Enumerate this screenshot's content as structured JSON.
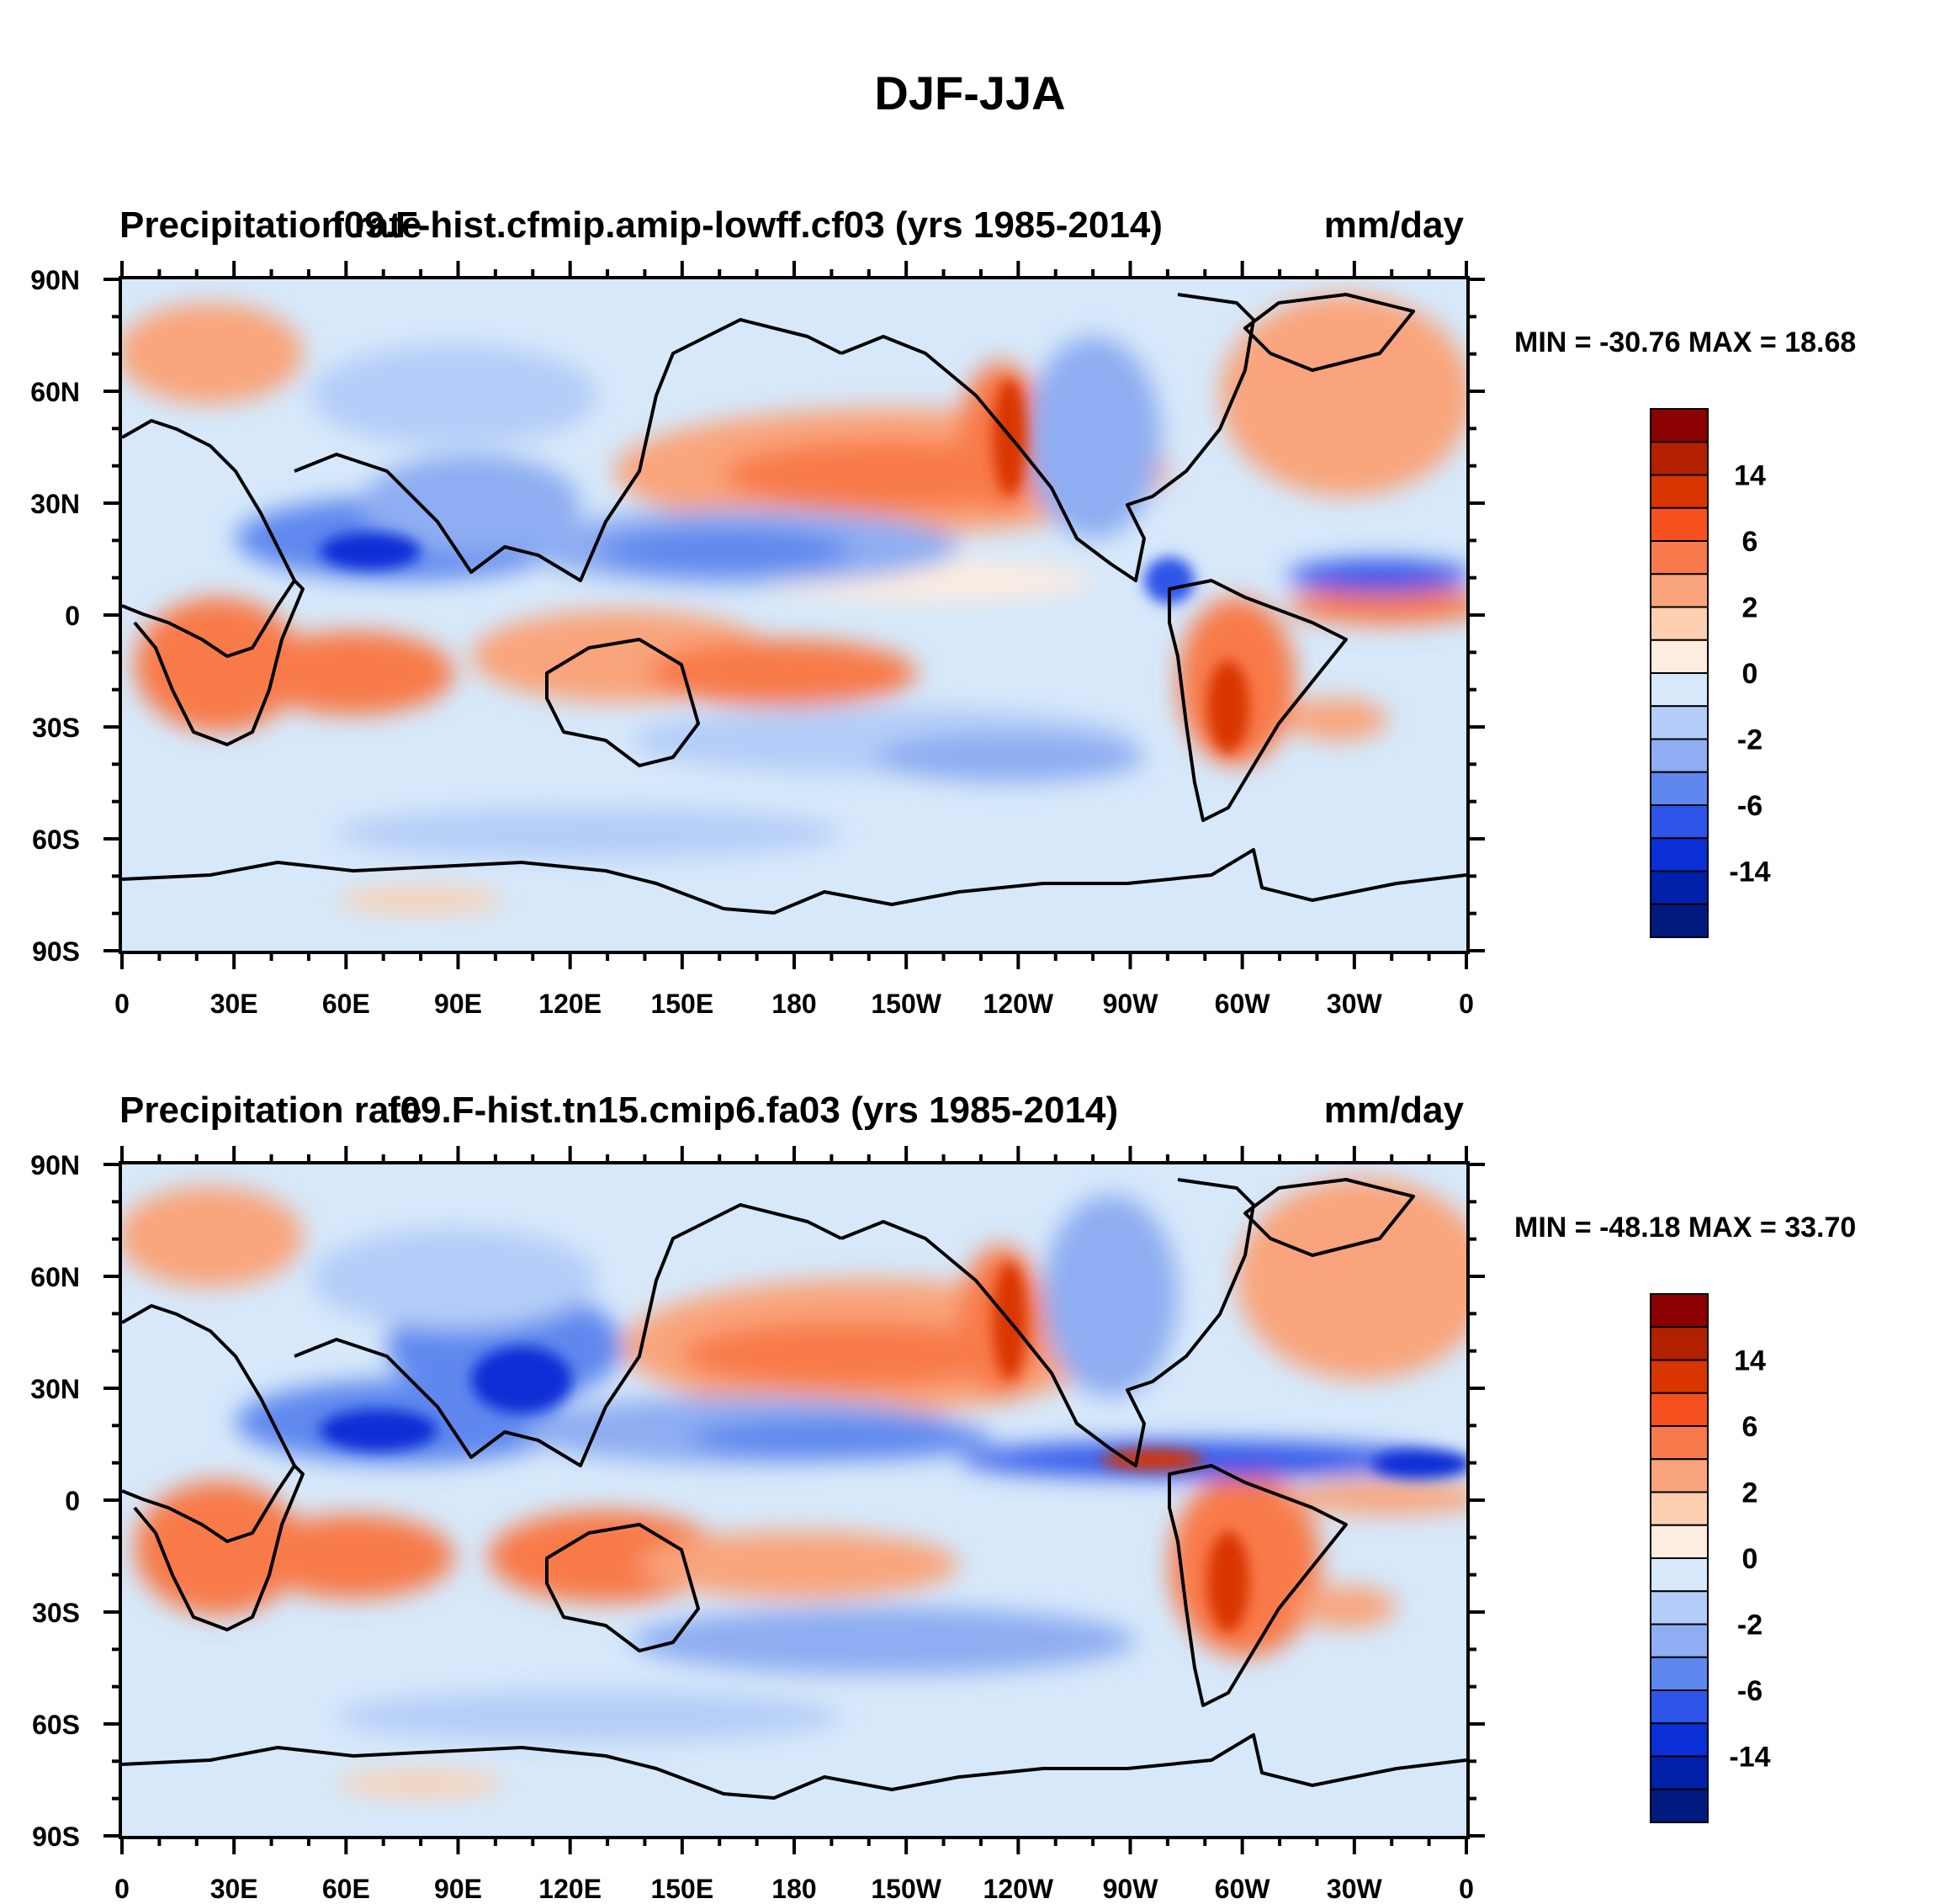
{
  "figure_title": "DJF-JJA",
  "chart_data": [
    {
      "type": "heatmap",
      "title_left": "Precipitation rate",
      "title_center": "f09.F-hist.cfmip.amip-lowff.cf03 (yrs 1985-2014)",
      "title_right": "mm/day",
      "stats": "MIN = -30.76 MAX =  18.68",
      "xlim": [
        0,
        360
      ],
      "ylim": [
        -90,
        90
      ],
      "x_ticks": [
        "0",
        "30E",
        "60E",
        "90E",
        "120E",
        "150E",
        "180",
        "150W",
        "120W",
        "90W",
        "60W",
        "30W",
        "0"
      ],
      "y_ticks": [
        "90N",
        "60N",
        "30N",
        "0",
        "30S",
        "60S",
        "90S"
      ],
      "legend_labels": [
        "14",
        "6",
        "2",
        "0",
        "-2",
        "-6",
        "-14"
      ]
    },
    {
      "type": "heatmap",
      "title_left": "Precipitation rate",
      "title_center": "f09.F-hist.tn15.cmip6.fa03 (yrs 1985-2014)",
      "title_right": "mm/day",
      "stats": "MIN = -48.18 MAX =  33.70",
      "xlim": [
        0,
        360
      ],
      "ylim": [
        -90,
        90
      ],
      "x_ticks": [
        "0",
        "30E",
        "60E",
        "90E",
        "120E",
        "150E",
        "180",
        "150W",
        "120W",
        "90W",
        "60W",
        "30W",
        "0"
      ],
      "y_ticks": [
        "90N",
        "60N",
        "30N",
        "0",
        "30S",
        "60S",
        "90S"
      ],
      "legend_labels": [
        "14",
        "6",
        "2",
        "0",
        "-2",
        "-6",
        "-14"
      ]
    }
  ],
  "colorbar_colors": [
    "#8b0000",
    "#b22000",
    "#d93500",
    "#f5501e",
    "#f87a4a",
    "#f9a47c",
    "#fbcfb0",
    "#fdece0",
    "#d6e8fa",
    "#b4cdf8",
    "#8eadf2",
    "#5f88ee",
    "#2d55ea",
    "#0a2fd6",
    "#0020aa",
    "#001a80"
  ],
  "colors": {
    "neutral_blue": "#d6e8fa",
    "neutral_red": "#fdece0"
  }
}
